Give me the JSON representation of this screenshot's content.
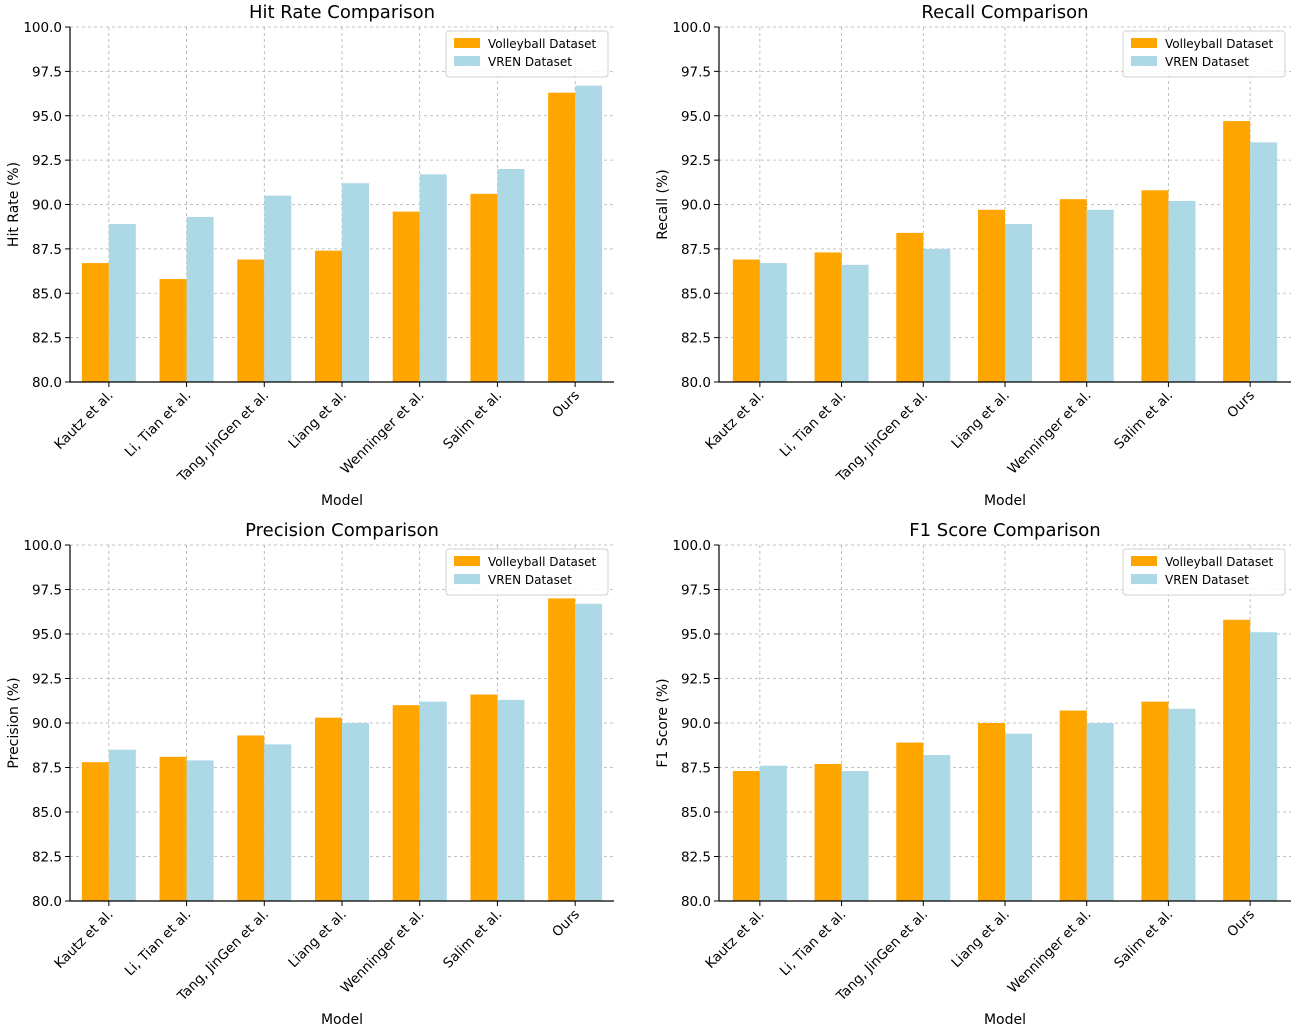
{
  "colors": {
    "volleyball": "#FFA500",
    "vren": "#ADD8E6"
  },
  "chart_data": [
    {
      "type": "bar",
      "title": "Hit Rate Comparison",
      "xlabel": "Model",
      "ylabel": "Hit Rate (%)",
      "ylim": [
        80,
        100
      ],
      "yticks": [
        "80.0",
        "82.5",
        "85.0",
        "87.5",
        "90.0",
        "92.5",
        "95.0",
        "97.5",
        "100.0"
      ],
      "grid": true,
      "legend": "top-right",
      "categories": [
        "Kautz et al.",
        "Li, Tian et al.",
        "Tang, JinGen et al.",
        "Liang et al.",
        "Wenninger et al.",
        "Salim et al.",
        "Ours"
      ],
      "series": [
        {
          "name": "Volleyball Dataset",
          "values": [
            86.7,
            85.8,
            86.9,
            87.4,
            89.6,
            90.6,
            96.3
          ]
        },
        {
          "name": "VREN Dataset",
          "values": [
            88.9,
            89.3,
            90.5,
            91.2,
            91.7,
            92.0,
            96.7
          ]
        }
      ]
    },
    {
      "type": "bar",
      "title": "Recall Comparison",
      "xlabel": "Model",
      "ylabel": "Recall (%)",
      "ylim": [
        80,
        100
      ],
      "yticks": [
        "80.0",
        "82.5",
        "85.0",
        "87.5",
        "90.0",
        "92.5",
        "95.0",
        "97.5",
        "100.0"
      ],
      "grid": true,
      "legend": "top-right",
      "categories": [
        "Kautz et al.",
        "Li, Tian et al.",
        "Tang, JinGen et al.",
        "Liang et al.",
        "Wenninger et al.",
        "Salim et al.",
        "Ours"
      ],
      "series": [
        {
          "name": "Volleyball Dataset",
          "values": [
            86.9,
            87.3,
            88.4,
            89.7,
            90.3,
            90.8,
            94.7
          ]
        },
        {
          "name": "VREN Dataset",
          "values": [
            86.7,
            86.6,
            87.5,
            88.9,
            89.7,
            90.2,
            93.5
          ]
        }
      ]
    },
    {
      "type": "bar",
      "title": "Precision Comparison",
      "xlabel": "Model",
      "ylabel": "Precision (%)",
      "ylim": [
        80,
        100
      ],
      "yticks": [
        "80.0",
        "82.5",
        "85.0",
        "87.5",
        "90.0",
        "92.5",
        "95.0",
        "97.5",
        "100.0"
      ],
      "grid": true,
      "legend": "top-right",
      "categories": [
        "Kautz et al.",
        "Li, Tian et al.",
        "Tang, JinGen et al.",
        "Liang et al.",
        "Wenninger et al.",
        "Salim et al.",
        "Ours"
      ],
      "series": [
        {
          "name": "Volleyball Dataset",
          "values": [
            87.8,
            88.1,
            89.3,
            90.3,
            91.0,
            91.6,
            97.0
          ]
        },
        {
          "name": "VREN Dataset",
          "values": [
            88.5,
            87.9,
            88.8,
            90.0,
            91.2,
            91.3,
            96.7
          ]
        }
      ]
    },
    {
      "type": "bar",
      "title": "F1 Score Comparison",
      "xlabel": "Model",
      "ylabel": "F1 Score (%)",
      "ylim": [
        80,
        100
      ],
      "yticks": [
        "80.0",
        "82.5",
        "85.0",
        "87.5",
        "90.0",
        "92.5",
        "95.0",
        "97.5",
        "100.0"
      ],
      "grid": true,
      "legend": "top-right",
      "categories": [
        "Kautz et al.",
        "Li, Tian et al.",
        "Tang, JinGen et al.",
        "Liang et al.",
        "Wenninger et al.",
        "Salim et al.",
        "Ours"
      ],
      "series": [
        {
          "name": "Volleyball Dataset",
          "values": [
            87.3,
            87.7,
            88.9,
            90.0,
            90.7,
            91.2,
            95.8
          ]
        },
        {
          "name": "VREN Dataset",
          "values": [
            87.6,
            87.3,
            88.2,
            89.4,
            90.0,
            90.8,
            95.1
          ]
        }
      ]
    }
  ]
}
